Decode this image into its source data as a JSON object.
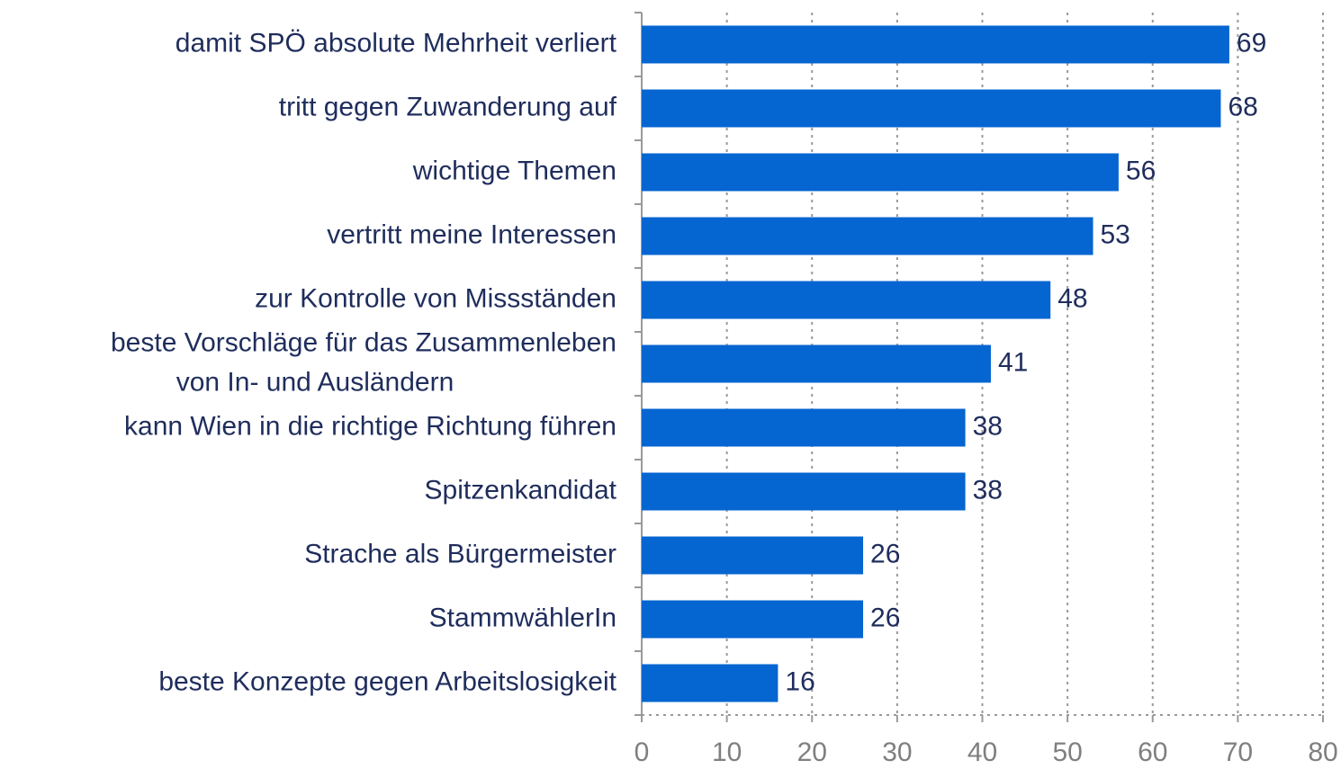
{
  "chart_data": {
    "type": "bar",
    "orientation": "horizontal",
    "categories": [
      "damit SPÖ absolute Mehrheit verliert",
      "tritt gegen Zuwanderung auf",
      "wichtige Themen",
      "vertritt meine Interessen",
      "zur Kontrolle von Missständen",
      "beste Vorschläge für das Zusammenleben\nvon In- und Ausländern",
      "kann Wien in die richtige Richtung führen",
      "Spitzenkandidat",
      "Strache als Bürgermeister",
      "StammwählerIn",
      "beste Konzepte gegen Arbeitslosigkeit"
    ],
    "values": [
      69,
      68,
      56,
      53,
      48,
      41,
      38,
      38,
      26,
      26,
      16
    ],
    "color": "#0565d1",
    "xlim": [
      0,
      80
    ],
    "xticks": [
      0,
      10,
      20,
      30,
      40,
      50,
      60,
      70,
      80
    ],
    "grid": true
  }
}
